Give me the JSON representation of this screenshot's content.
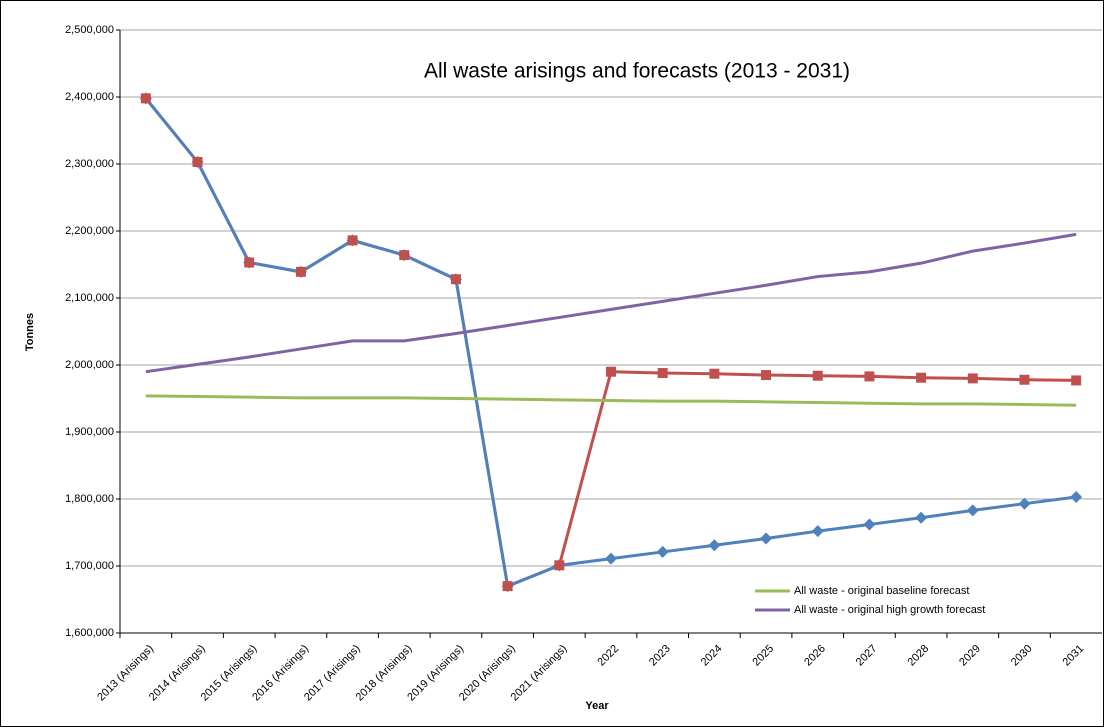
{
  "chart_data": {
    "type": "line",
    "title": "All waste arisings and forecasts (2013 - 2031)",
    "x_label": "Year",
    "y_label": "Tonnes",
    "categories": [
      "2013 (Arisings)",
      "2014 (Arisings)",
      "2015 (Arisings)",
      "2016 (Arisings)",
      "2017 (Arisings)",
      "2018 (Arisings)",
      "2019 (Arisings)",
      "2020 (Arisings)",
      "2021 (Arisings)",
      "2022",
      "2023",
      "2024",
      "2025",
      "2026",
      "2027",
      "2028",
      "2029",
      "2030",
      "2031"
    ],
    "series": [
      {
        "color": "#c0504d",
        "marker": "square",
        "values": [
          2398000,
          2303000,
          2153000,
          2139000,
          2186000,
          2164000,
          2128000,
          1670000,
          1701000,
          1990000,
          1988000,
          1987000,
          1985000,
          1984000,
          1983000,
          1981000,
          1980000,
          1978000,
          1977000
        ]
      },
      {
        "color": "#4f81bd",
        "marker": "diamond",
        "values": [
          2398000,
          2303000,
          2153000,
          2139000,
          2186000,
          2164000,
          2128000,
          1670000,
          1701000,
          1711000,
          1721000,
          1731000,
          1741000,
          1752000,
          1762000,
          1772000,
          1783000,
          1793000,
          1803000
        ]
      },
      {
        "name": "All waste - original baseline forecast",
        "color": "#9bbb59",
        "values": [
          1954000,
          1953000,
          1952000,
          1951000,
          1951000,
          1951000,
          1950000,
          1949000,
          1948000,
          1947000,
          1946000,
          1946000,
          1945000,
          1944000,
          1943000,
          1942000,
          1942000,
          1941000,
          1940000
        ]
      },
      {
        "name": "All waste - original high growth forecast",
        "color": "#8064a2",
        "values": [
          1990000,
          2001000,
          2012000,
          2024000,
          2036000,
          2036000,
          2047000,
          2059000,
          2071000,
          2083000,
          2095000,
          2107000,
          2119000,
          2132000,
          2139000,
          2152000,
          2170000,
          2182000,
          2195000
        ]
      }
    ],
    "ylim": [
      1600000,
      2500000
    ],
    "yticks": [
      {
        "value": 1600000,
        "label": "1,600,000"
      },
      {
        "value": 1700000,
        "label": "1,700,000"
      },
      {
        "value": 1800000,
        "label": "1,800,000"
      },
      {
        "value": 1900000,
        "label": "1,900,000"
      },
      {
        "value": 2000000,
        "label": "2,000,000"
      },
      {
        "value": 2100000,
        "label": "2,100,000"
      },
      {
        "value": 2200000,
        "label": "2,200,000"
      },
      {
        "value": 2300000,
        "label": "2,300,000"
      },
      {
        "value": 2400000,
        "label": "2,400,000"
      },
      {
        "value": 2500000,
        "label": "2,500,000"
      }
    ],
    "grid": true
  }
}
